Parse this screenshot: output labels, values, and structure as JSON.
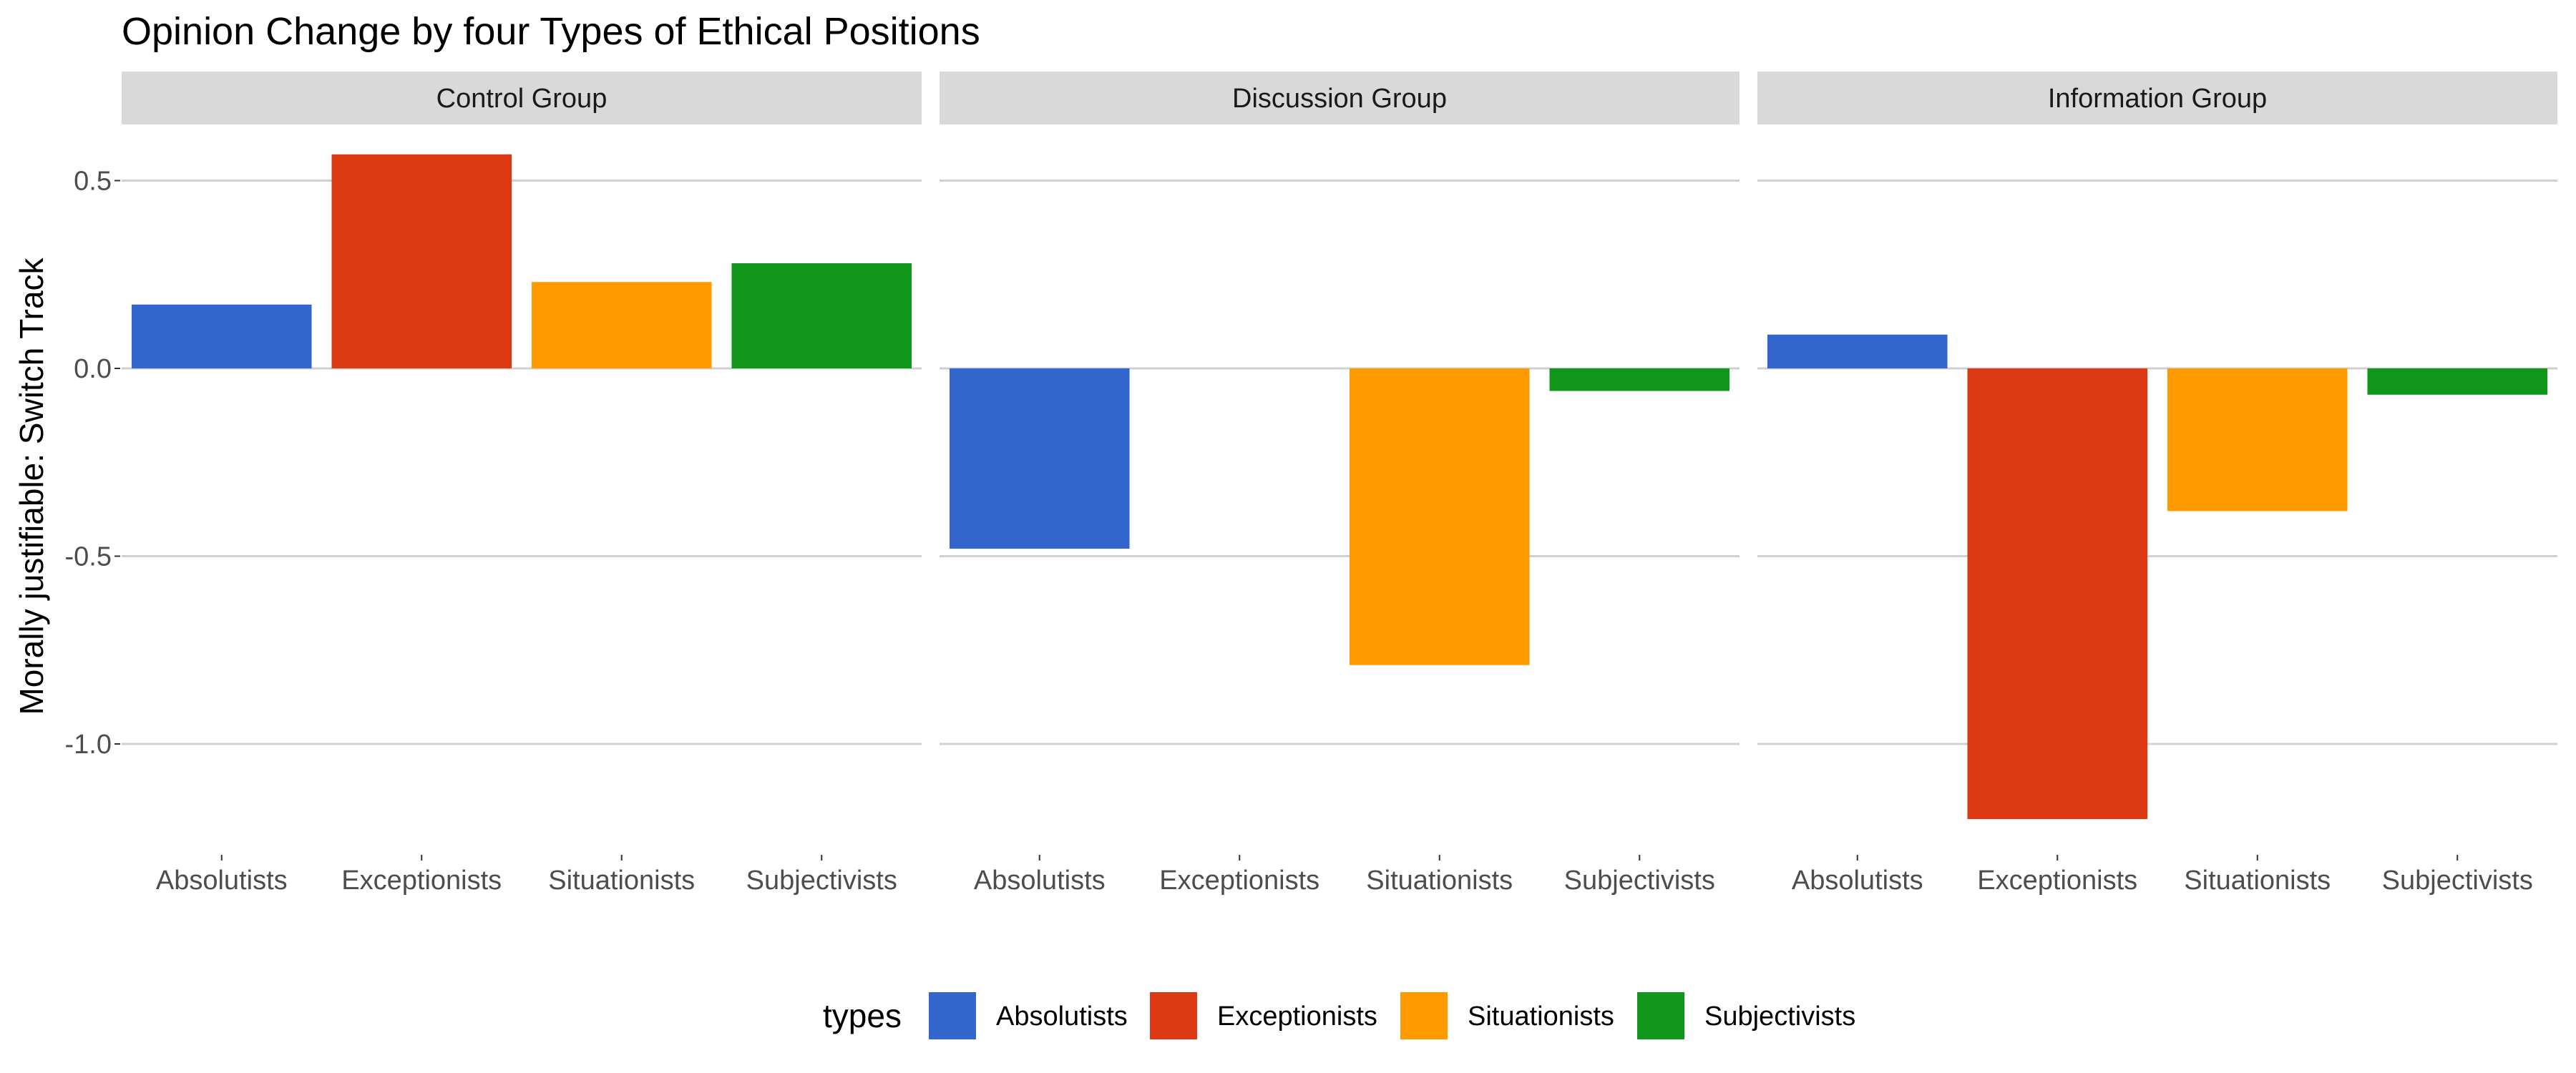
{
  "chart_data": {
    "type": "bar",
    "title": "Opinion Change by four Types of Ethical Positions",
    "ylabel": "Morally justifiable: Switch Track",
    "xlabel": "",
    "ylim": [
      -1.2,
      0.6
    ],
    "yticks": [
      0.5,
      0.0,
      -0.5,
      -1.0
    ],
    "ytick_labels": [
      "0.5",
      "0.0",
      "-0.5",
      "-1.0"
    ],
    "grid": true,
    "categories": [
      "Absolutists",
      "Exceptionists",
      "Situationists",
      "Subjectivists"
    ],
    "colors": [
      "#3366cc",
      "#dc3912",
      "#ff9900",
      "#109618"
    ],
    "facets": [
      {
        "name": "Control Group",
        "values": [
          0.17,
          0.57,
          0.23,
          0.28
        ]
      },
      {
        "name": "Discussion Group",
        "values": [
          -0.48,
          null,
          -0.79,
          -0.06
        ]
      },
      {
        "name": "Information Group",
        "values": [
          0.09,
          -1.2,
          -0.38,
          -0.07
        ]
      }
    ],
    "legend": {
      "title": "types",
      "position": "bottom",
      "entries": [
        "Absolutists",
        "Exceptionists",
        "Situationists",
        "Subjectivists"
      ]
    }
  }
}
